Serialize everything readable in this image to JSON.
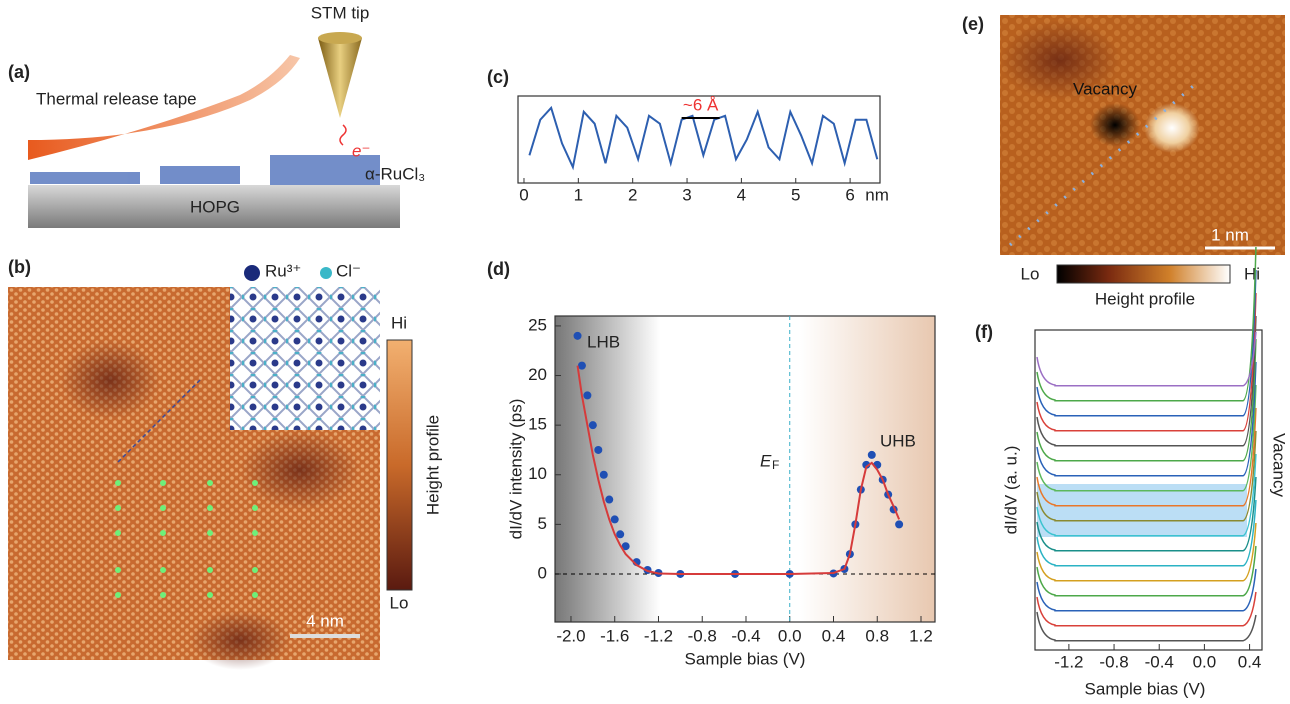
{
  "panel_a": {
    "label": "(a)",
    "tape": "Thermal release tape",
    "tip": "STM tip",
    "electron": "e⁻",
    "material": "α-RuCl₃",
    "substrate": "HOPG"
  },
  "panel_b": {
    "label": "(b)",
    "legend": [
      "Ru³⁺",
      "Cl⁻"
    ],
    "colorbar_hi": "Hi",
    "colorbar_lo": "Lo",
    "colorbar_title": "Height profile",
    "scale_bar": "4 nm"
  },
  "panel_c": {
    "label": "(c)",
    "type": "line",
    "color": "#2d5fb0",
    "x": [
      0.1,
      0.3,
      0.5,
      0.7,
      0.9,
      1.1,
      1.3,
      1.5,
      1.7,
      1.9,
      2.1,
      2.3,
      2.5,
      2.7,
      2.9,
      3.1,
      3.3,
      3.5,
      3.7,
      3.9,
      4.1,
      4.3,
      4.5,
      4.7,
      4.9,
      5.1,
      5.3,
      5.5,
      5.7,
      5.9,
      6.1,
      6.3,
      6.5
    ],
    "values": [
      0.35,
      0.8,
      0.95,
      0.5,
      0.2,
      0.9,
      0.75,
      0.25,
      0.85,
      0.7,
      0.3,
      0.85,
      0.75,
      0.25,
      0.8,
      0.85,
      0.35,
      0.8,
      0.85,
      0.3,
      0.55,
      0.9,
      0.45,
      0.3,
      0.9,
      0.6,
      0.25,
      0.85,
      0.75,
      0.25,
      0.8,
      0.8,
      0.3
    ],
    "xlim": [
      -0.11,
      6.55
    ],
    "ylim": [
      0,
      1.1
    ],
    "xticks": [
      0,
      1,
      2,
      3,
      4,
      5,
      6
    ],
    "x_unit": "nm",
    "annotation": "~6  Å",
    "annotation_span": [
      2.9,
      3.6
    ]
  },
  "panel_d": {
    "label": "(d)",
    "type": "scatter",
    "xlabel": "Sample bias (V)",
    "ylabel": "dI/dV intensity (ps)",
    "x": [
      -1.94,
      -1.9,
      -1.85,
      -1.8,
      -1.75,
      -1.7,
      -1.65,
      -1.6,
      -1.55,
      -1.5,
      -1.4,
      -1.3,
      -1.2,
      -1.0,
      -0.5,
      0,
      0.4,
      0.5,
      0.55,
      0.6,
      0.65,
      0.7,
      0.75,
      0.8,
      0.85,
      0.9,
      0.95,
      1.0
    ],
    "series": [
      {
        "color": "#1f4fb4",
        "values": [
          24,
          21,
          18,
          15,
          12.5,
          10,
          7.5,
          5.5,
          4,
          2.8,
          1.2,
          0.4,
          0.1,
          0,
          0,
          0,
          0.05,
          0.5,
          2,
          5,
          8.5,
          11,
          12,
          11,
          9.5,
          8,
          6.5,
          5
        ]
      },
      {
        "color": "#d63b3b",
        "values": [
          21,
          18,
          15,
          12,
          9.5,
          7.3,
          5.5,
          4,
          2.9,
          2,
          0.9,
          0.3,
          0.05,
          0,
          0,
          0,
          0.1,
          0.5,
          2,
          5,
          8.5,
          10.8,
          11.2,
          10.5,
          9.5,
          8,
          6.8,
          5.5
        ]
      }
    ],
    "xlim": [
      -2.146,
      1.328
    ],
    "ylim": [
      -4.84,
      26
    ],
    "xticks": [
      {
        "value": -2,
        "label": "-2.0"
      },
      -1.6,
      -1.2,
      -0.8,
      -0.4,
      {
        "value": 0,
        "label": "0.0"
      },
      0.4,
      0.8,
      1.2
    ],
    "yticks": [
      0,
      5,
      10,
      15,
      20,
      25
    ],
    "annotations": {
      "lhb": "LHB",
      "uhb": "UHB",
      "ef": "E",
      "ef_sub": "F"
    }
  },
  "panel_e": {
    "label": "(e)",
    "annotation": "Vacancy",
    "scale_bar": "1 nm",
    "colorbar_lo": "Lo",
    "colorbar_hi": "Hi",
    "colorbar_title": "Height profile"
  },
  "panel_f": {
    "label": "(f)",
    "xlabel": "Sample bias (V)",
    "ylabel": "dI/dV (a. u.)",
    "side_label": "Vacancy",
    "xlim": [
      -1.5,
      0.51
    ],
    "xticks": [
      -1.2,
      -0.8,
      -0.4,
      {
        "value": 0,
        "label": "0.0"
      },
      0.4
    ],
    "curve_colors": [
      "#555555",
      "#d9413a",
      "#2a62b8",
      "#4da84a",
      "#d4a020",
      "#2bb3c4",
      "#1a8f8a",
      "#3cc3d0",
      "#8a8a30",
      "#e8772a",
      "#5cb85c",
      "#2a62b8",
      "#4da84a",
      "#555555",
      "#d9413a",
      "#2a62b8",
      "#4da84a",
      "#9b6fc4"
    ]
  }
}
